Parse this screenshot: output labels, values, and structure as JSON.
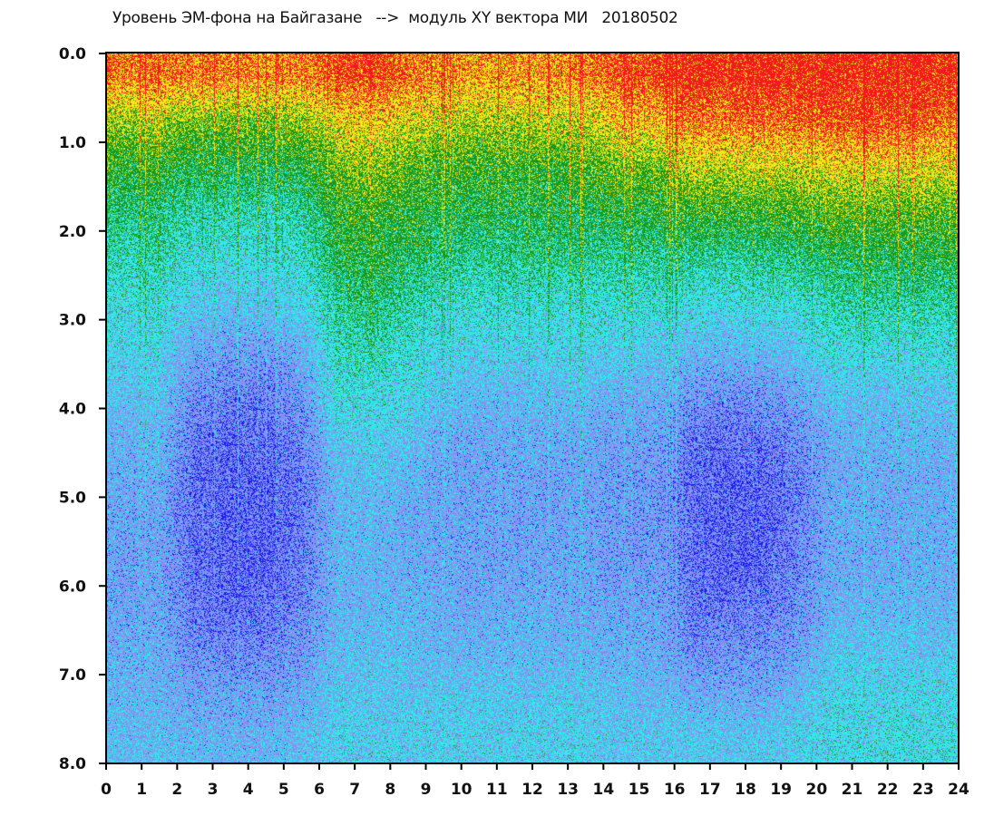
{
  "chart_data": {
    "type": "heatmap",
    "title": "Уровень ЭМ-фона на Байгазане   -->  модуль XY вектора МИ   20180502",
    "xlabel": "",
    "ylabel": "",
    "xlim": [
      0,
      24
    ],
    "ylim": [
      0,
      8
    ],
    "y_inverted": true,
    "grid": false,
    "legend": "none",
    "x_ticks": [
      "0",
      "1",
      "2",
      "3",
      "4",
      "5",
      "6",
      "7",
      "8",
      "9",
      "10",
      "11",
      "12",
      "13",
      "14",
      "15",
      "16",
      "17",
      "18",
      "19",
      "20",
      "21",
      "22",
      "23",
      "24"
    ],
    "y_ticks": [
      "0.0",
      "1.0",
      "2.0",
      "3.0",
      "4.0",
      "5.0",
      "6.0",
      "7.0",
      "8.0"
    ],
    "color_scale": [
      "#1c1ce8",
      "#8290f2",
      "#34e8e8",
      "#1a9a1a",
      "#f2e61c",
      "#f01c1c"
    ],
    "x_bins_hours": [
      0,
      1,
      2,
      3,
      4,
      5,
      6,
      7,
      8,
      9,
      10,
      11,
      12,
      13,
      14,
      15,
      16,
      17,
      18,
      19,
      20,
      21,
      22,
      23
    ],
    "y_bins": [
      0.0,
      0.5,
      1.0,
      1.5,
      2.0,
      2.5,
      3.0,
      3.5,
      4.0,
      4.5,
      5.0,
      5.5,
      6.0,
      6.5,
      7.0,
      7.5
    ],
    "color_level_by_hour": [
      [
        4.6,
        3.6,
        3.0,
        2.6,
        2.3,
        2.0,
        1.8,
        1.6,
        1.4,
        1.3,
        1.2,
        1.2,
        1.2,
        1.3,
        1.4,
        1.5
      ],
      [
        4.6,
        3.6,
        3.0,
        2.6,
        2.3,
        2.0,
        1.8,
        1.6,
        1.4,
        1.3,
        1.2,
        1.2,
        1.2,
        1.3,
        1.4,
        1.5
      ],
      [
        4.5,
        3.4,
        2.8,
        2.3,
        2.0,
        1.7,
        1.3,
        1.0,
        0.8,
        0.7,
        0.7,
        0.7,
        0.8,
        1.0,
        1.2,
        1.4
      ],
      [
        4.5,
        3.4,
        2.8,
        2.3,
        2.0,
        1.6,
        1.2,
        0.9,
        0.7,
        0.6,
        0.6,
        0.6,
        0.7,
        0.9,
        1.2,
        1.4
      ],
      [
        4.5,
        3.4,
        2.8,
        2.3,
        2.0,
        1.6,
        1.2,
        0.9,
        0.7,
        0.6,
        0.6,
        0.6,
        0.7,
        0.9,
        1.2,
        1.4
      ],
      [
        4.5,
        3.5,
        2.9,
        2.4,
        2.1,
        1.8,
        1.4,
        1.1,
        0.9,
        0.8,
        0.8,
        0.8,
        0.9,
        1.1,
        1.3,
        1.5
      ],
      [
        4.8,
        4.0,
        3.4,
        3.0,
        2.8,
        2.5,
        2.2,
        2.0,
        1.7,
        1.5,
        1.4,
        1.4,
        1.4,
        1.5,
        1.6,
        1.7
      ],
      [
        4.9,
        4.1,
        3.5,
        3.1,
        2.9,
        2.6,
        2.3,
        2.0,
        1.7,
        1.5,
        1.4,
        1.4,
        1.4,
        1.5,
        1.6,
        1.7
      ],
      [
        4.6,
        3.9,
        3.3,
        3.0,
        2.7,
        2.4,
        2.1,
        1.9,
        1.6,
        1.4,
        1.3,
        1.3,
        1.4,
        1.5,
        1.6,
        1.7
      ],
      [
        4.4,
        3.7,
        3.1,
        2.8,
        2.5,
        2.1,
        1.8,
        1.5,
        1.3,
        1.2,
        1.2,
        1.2,
        1.3,
        1.4,
        1.6,
        1.7
      ],
      [
        4.4,
        3.7,
        3.1,
        2.8,
        2.5,
        2.1,
        1.8,
        1.5,
        1.3,
        1.2,
        1.2,
        1.2,
        1.3,
        1.4,
        1.6,
        1.7
      ],
      [
        4.4,
        3.7,
        3.1,
        2.8,
        2.5,
        2.1,
        1.8,
        1.5,
        1.3,
        1.2,
        1.2,
        1.2,
        1.3,
        1.4,
        1.6,
        1.7
      ],
      [
        4.4,
        3.7,
        3.1,
        2.8,
        2.5,
        2.1,
        1.8,
        1.5,
        1.3,
        1.2,
        1.2,
        1.2,
        1.3,
        1.4,
        1.6,
        1.7
      ],
      [
        4.5,
        3.8,
        3.2,
        2.8,
        2.5,
        2.1,
        1.8,
        1.5,
        1.3,
        1.2,
        1.2,
        1.2,
        1.3,
        1.4,
        1.6,
        1.7
      ],
      [
        4.8,
        4.2,
        3.4,
        2.9,
        2.5,
        2.1,
        1.7,
        1.4,
        1.2,
        1.1,
        1.1,
        1.1,
        1.2,
        1.3,
        1.5,
        1.6
      ],
      [
        4.8,
        4.2,
        3.4,
        2.9,
        2.5,
        2.1,
        1.7,
        1.4,
        1.2,
        1.1,
        1.1,
        1.1,
        1.2,
        1.3,
        1.5,
        1.6
      ],
      [
        5.0,
        4.6,
        3.8,
        3.1,
        2.5,
        2.0,
        1.5,
        1.1,
        0.8,
        0.7,
        0.7,
        0.7,
        0.8,
        1.0,
        1.3,
        1.6
      ],
      [
        5.0,
        4.6,
        3.8,
        3.1,
        2.5,
        2.0,
        1.5,
        1.1,
        0.8,
        0.6,
        0.6,
        0.6,
        0.8,
        1.0,
        1.3,
        1.6
      ],
      [
        5.0,
        4.6,
        3.8,
        3.1,
        2.5,
        2.0,
        1.5,
        1.1,
        0.8,
        0.6,
        0.6,
        0.6,
        0.8,
        1.0,
        1.3,
        1.6
      ],
      [
        5.0,
        4.7,
        3.9,
        3.2,
        2.6,
        2.1,
        1.7,
        1.3,
        1.0,
        0.9,
        0.9,
        0.9,
        1.0,
        1.2,
        1.5,
        1.7
      ],
      [
        5.0,
        4.8,
        4.0,
        3.3,
        2.8,
        2.4,
        2.0,
        1.6,
        1.4,
        1.3,
        1.3,
        1.3,
        1.4,
        1.6,
        1.8,
        1.9
      ],
      [
        5.0,
        4.8,
        4.0,
        3.3,
        2.8,
        2.4,
        2.0,
        1.6,
        1.4,
        1.3,
        1.3,
        1.3,
        1.4,
        1.6,
        1.8,
        1.9
      ],
      [
        5.0,
        4.8,
        4.0,
        3.3,
        2.8,
        2.4,
        2.0,
        1.6,
        1.4,
        1.3,
        1.3,
        1.3,
        1.4,
        1.6,
        1.8,
        1.9
      ],
      [
        4.9,
        4.6,
        3.9,
        3.2,
        2.8,
        2.4,
        2.0,
        1.6,
        1.4,
        1.3,
        1.3,
        1.3,
        1.4,
        1.6,
        1.8,
        1.9
      ]
    ]
  }
}
